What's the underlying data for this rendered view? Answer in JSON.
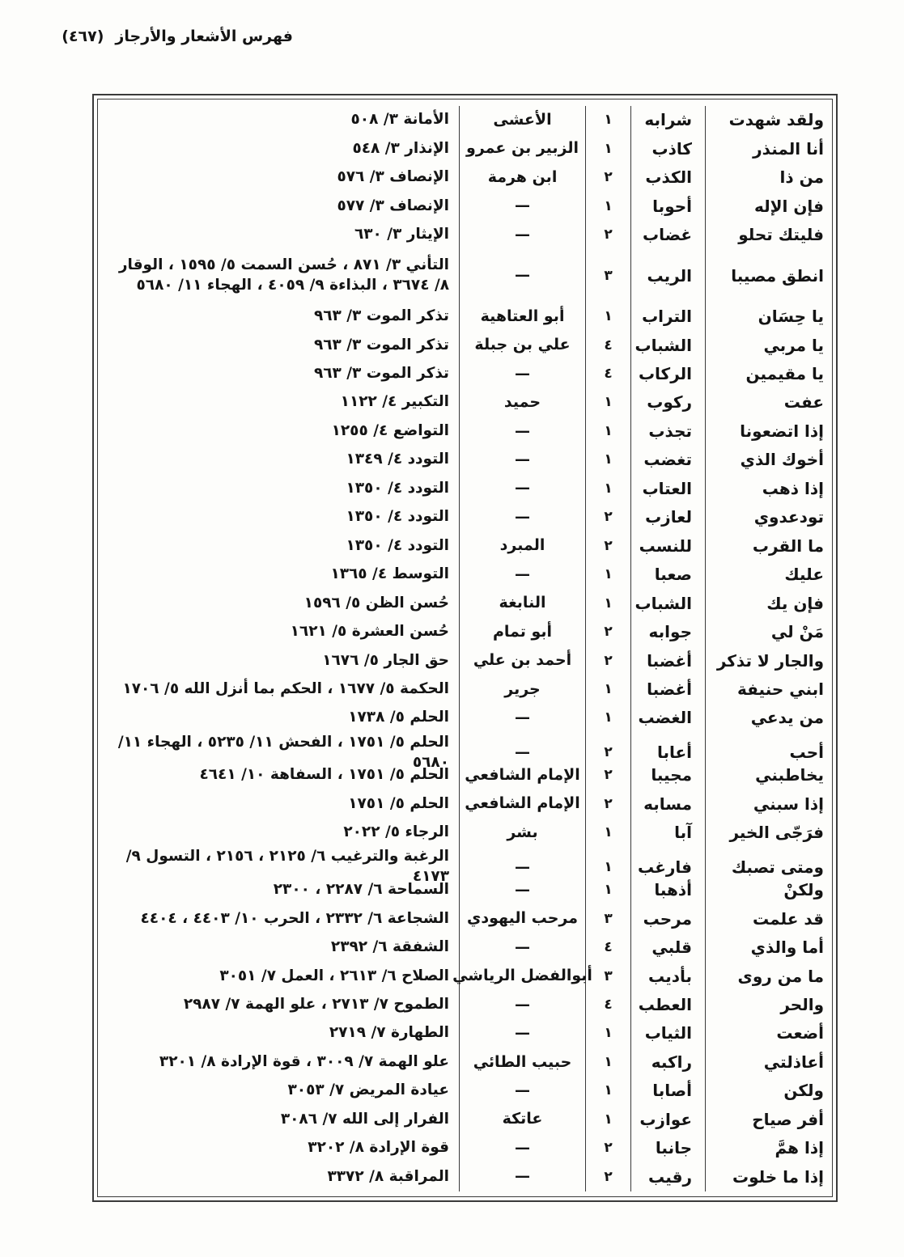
{
  "header": {
    "title": "فهرس الأشعار والأرجاز",
    "page_number": "(٤٦٧)"
  },
  "table": {
    "rows": [
      {
        "first_words": "ولقد شهدت",
        "rhyme": "شرابه",
        "count": "١",
        "poet": "الأعشى",
        "refs": "الأمانة ٣/ ٥٠٨"
      },
      {
        "first_words": "أنا المنذر",
        "rhyme": "كاذب",
        "count": "١",
        "poet": "الزبير بن عمرو",
        "refs": "الإنذار ٣/ ٥٤٨"
      },
      {
        "first_words": "من ذا",
        "rhyme": "الكذب",
        "count": "٢",
        "poet": "ابن هرمة",
        "refs": "الإنصاف ٣/ ٥٧٦"
      },
      {
        "first_words": "فإن الإله",
        "rhyme": "أحوبا",
        "count": "١",
        "poet": "—",
        "refs": "الإنصاف ٣/ ٥٧٧"
      },
      {
        "first_words": "فليتك تحلو",
        "rhyme": "غضاب",
        "count": "٢",
        "poet": "—",
        "refs": "الإيثار ٣/ ٦٣٠"
      },
      {
        "first_words": "انطق مصيبا",
        "rhyme": "الريب",
        "count": "٣",
        "poet": "—",
        "refs": "التأني ٣/ ٨٧١ ، حُسن السمت ٥/ ١٥٩٥ ، الوقار ٨/ ٣٦٧٤ ، البذاءة ٩/ ٤٠٥٩ ، الهجاء ١١/ ٥٦٨٠"
      },
      {
        "first_words": "يا حِسَان",
        "rhyme": "التراب",
        "count": "١",
        "poet": "أبو العتاهية",
        "refs": "تذكر الموت ٣/ ٩٦٣"
      },
      {
        "first_words": "يا مربي",
        "rhyme": "الشباب",
        "count": "٤",
        "poet": "علي بن جبلة",
        "refs": "تذكر الموت ٣/ ٩٦٣"
      },
      {
        "first_words": "يا مقيمين",
        "rhyme": "الركاب",
        "count": "٤",
        "poet": "—",
        "refs": "تذكر الموت ٣/ ٩٦٣"
      },
      {
        "first_words": "عفت",
        "rhyme": "ركوب",
        "count": "١",
        "poet": "حميد",
        "refs": "التكبير ٤/ ١١٢٢"
      },
      {
        "first_words": "إذا اتضعونا",
        "rhyme": "تجذب",
        "count": "١",
        "poet": "—",
        "refs": "التواضع ٤/ ١٢٥٥"
      },
      {
        "first_words": "أخوك الذي",
        "rhyme": "تغضب",
        "count": "١",
        "poet": "—",
        "refs": "التودد ٤/ ١٣٤٩"
      },
      {
        "first_words": "إذا ذهب",
        "rhyme": "العتاب",
        "count": "١",
        "poet": "—",
        "refs": "التودد ٤/ ١٣٥٠"
      },
      {
        "first_words": "تودعدوي",
        "rhyme": "لعازب",
        "count": "٢",
        "poet": "—",
        "refs": "التودد ٤/ ١٣٥٠"
      },
      {
        "first_words": "ما القرب",
        "rhyme": "للنسب",
        "count": "٢",
        "poet": "المبرد",
        "refs": "التودد ٤/ ١٣٥٠"
      },
      {
        "first_words": "عليك",
        "rhyme": "صعبا",
        "count": "١",
        "poet": "—",
        "refs": "التوسط ٤/ ١٣٦٥"
      },
      {
        "first_words": "فإن يك",
        "rhyme": "الشباب",
        "count": "١",
        "poet": "النابغة",
        "refs": "حُسن الظن ٥/ ١٥٩٦"
      },
      {
        "first_words": "مَنْ لي",
        "rhyme": "جوابه",
        "count": "٢",
        "poet": "أبو تمام",
        "refs": "حُسن العشرة ٥/ ١٦٢١"
      },
      {
        "first_words": "والجار لا تذكر",
        "rhyme": "أغضبا",
        "count": "٢",
        "poet": "أحمد بن علي",
        "refs": "حق الجار ٥/ ١٦٧٦"
      },
      {
        "first_words": "ابني حنيفة",
        "rhyme": "أغضبا",
        "count": "١",
        "poet": "جرير",
        "refs": "الحكمة ٥/ ١٦٧٧ ، الحكم بما أنزل الله ٥/ ١٧٠٦"
      },
      {
        "first_words": "من يدعي",
        "rhyme": "الغضب",
        "count": "١",
        "poet": "—",
        "refs": "الحلم ٥/ ١٧٣٨"
      },
      {
        "first_words": "أحب",
        "rhyme": "أعابا",
        "count": "٢",
        "poet": "—",
        "refs": "الحلم ٥/ ١٧٥١ ، الفحش ١١/ ٥٢٣٥ ، الهجاء ١١/ ٥٦٨٠"
      },
      {
        "first_words": "يخاطبني",
        "rhyme": "مجيبا",
        "count": "٢",
        "poet": "الإمام الشافعي",
        "refs": "الحلم ٥/ ١٧٥١ ، السفاهة ١٠/ ٤٦٤١"
      },
      {
        "first_words": "إذا سبني",
        "rhyme": "مسابه",
        "count": "٢",
        "poet": "الإمام الشافعي",
        "refs": "الحلم ٥/ ١٧٥١"
      },
      {
        "first_words": "فرَجّى الخير",
        "rhyme": "آبا",
        "count": "١",
        "poet": "بشر",
        "refs": "الرجاء ٥/ ٢٠٢٢"
      },
      {
        "first_words": "ومتى تصبك",
        "rhyme": "فارغب",
        "count": "١",
        "poet": "—",
        "refs": "الرغبة والترغيب ٦/ ٢١٢٥ ، ٢١٥٦ ، التسول ٩/ ٤١٧٣"
      },
      {
        "first_words": "ولكنْ",
        "rhyme": "أذهبا",
        "count": "١",
        "poet": "—",
        "refs": "السماحة ٦/ ٢٢٨٧ ، ٢٣٠٠"
      },
      {
        "first_words": "قد علمت",
        "rhyme": "مرحب",
        "count": "٣",
        "poet": "مرحب اليهودي",
        "refs": "الشجاعة ٦/ ٢٣٣٢ ، الحرب ١٠/ ٤٤٠٣ ، ٤٤٠٤"
      },
      {
        "first_words": "أما والذي",
        "rhyme": "قلبي",
        "count": "٤",
        "poet": "—",
        "refs": "الشفقة ٦/ ٢٣٩٢"
      },
      {
        "first_words": "ما من روى",
        "rhyme": "بأديب",
        "count": "٣",
        "poet": "أبوالفضل الرياشي",
        "refs": "الصلاح ٦/ ٢٦١٣ ، العمل ٧/ ٣٠٥١"
      },
      {
        "first_words": "والحر",
        "rhyme": "العطب",
        "count": "٤",
        "poet": "—",
        "refs": "الطموح ٧/ ٢٧١٣ ، علو الهمة ٧/ ٢٩٨٧"
      },
      {
        "first_words": "أضعت",
        "rhyme": "الثياب",
        "count": "١",
        "poet": "—",
        "refs": "الطهارة ٧/ ٢٧١٩"
      },
      {
        "first_words": "أعاذلتي",
        "rhyme": "راكبه",
        "count": "١",
        "poet": "حبيب الطائي",
        "refs": "علو الهمة ٧/ ٣٠٠٩ ، قوة الإرادة ٨/ ٣٢٠١"
      },
      {
        "first_words": "ولكن",
        "rhyme": "أصابا",
        "count": "١",
        "poet": "—",
        "refs": "عيادة المريض ٧/ ٣٠٥٣"
      },
      {
        "first_words": "أفر صياح",
        "rhyme": "عوازب",
        "count": "١",
        "poet": "عاتكة",
        "refs": "الفرار إلى الله ٧/ ٣٠٨٦"
      },
      {
        "first_words": "إذا همَّ",
        "rhyme": "جانبا",
        "count": "٢",
        "poet": "—",
        "refs": "قوة الإرادة ٨/ ٣٢٠٢"
      },
      {
        "first_words": "إذا ما خلوت",
        "rhyme": "رقيب",
        "count": "٢",
        "poet": "—",
        "refs": "المراقبة ٨/ ٣٣٧٢"
      }
    ]
  }
}
